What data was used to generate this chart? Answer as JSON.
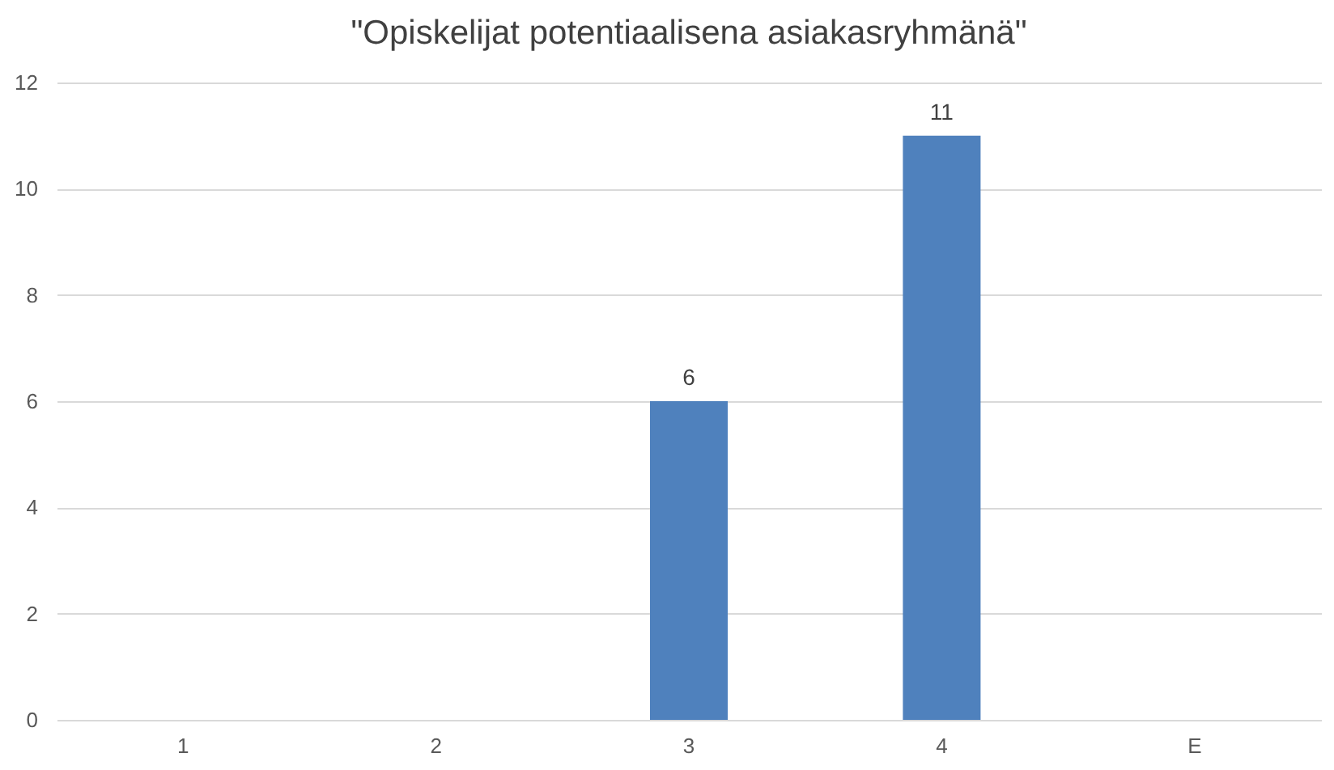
{
  "chart_data": {
    "type": "bar",
    "title": "\"Opiskelijat potentiaalisena asiakasryhmänä\"",
    "categories": [
      "1",
      "2",
      "3",
      "4",
      "E"
    ],
    "values": [
      null,
      null,
      6,
      11,
      null
    ],
    "color": "#4f81bd",
    "data_labels": true,
    "ylim": [
      0,
      12
    ],
    "yticks": [
      0,
      2,
      4,
      6,
      8,
      10,
      12
    ],
    "grid": "y"
  }
}
